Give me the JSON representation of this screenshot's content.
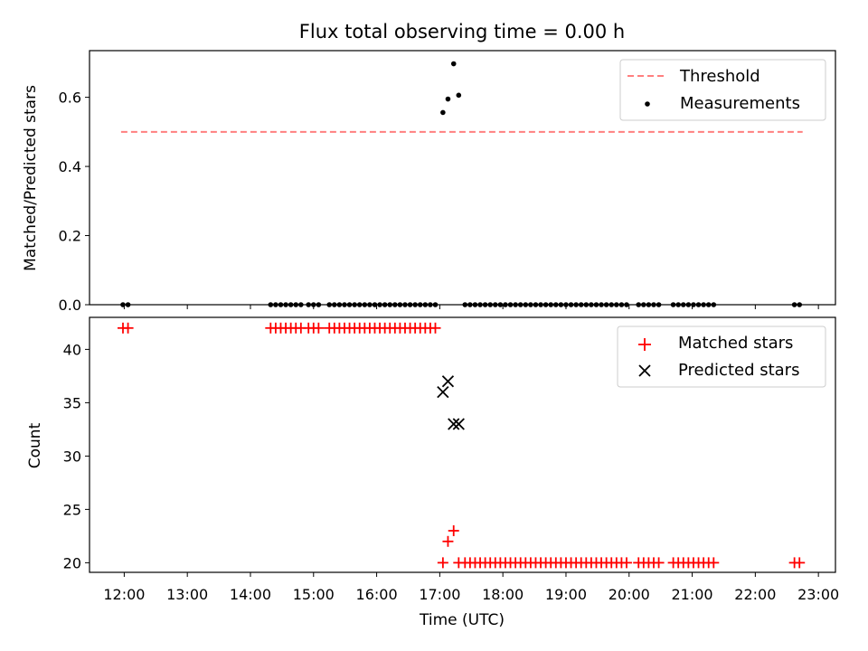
{
  "chart_data": [
    {
      "type": "scatter",
      "title": "Flux total observing time = 0.00 h",
      "xlabel": "",
      "ylabel": "Matched/Predicted stars",
      "xlim": [
        11.45,
        23.27
      ],
      "ylim": [
        0.0,
        0.735
      ],
      "yticks": [
        0.0,
        0.2,
        0.4,
        0.6
      ],
      "ytick_labels": [
        "0.0",
        "0.2",
        "0.4",
        "0.6"
      ],
      "legend_position": "upper right",
      "series": [
        {
          "name": "Threshold",
          "kind": "line",
          "style": "dashed",
          "color": "#ff7f7f",
          "x": [
            11.95,
            22.75
          ],
          "y": [
            0.5,
            0.5
          ]
        },
        {
          "name": "Measurements",
          "kind": "scatter",
          "marker": "dot",
          "color": "#000000",
          "x": [
            11.98,
            12.06,
            14.32,
            14.4,
            14.48,
            14.56,
            14.64,
            14.72,
            14.8,
            14.92,
            15.0,
            15.08,
            15.25,
            15.33,
            15.41,
            15.49,
            15.57,
            15.65,
            15.73,
            15.81,
            15.89,
            15.97,
            16.05,
            16.13,
            16.21,
            16.29,
            16.37,
            16.45,
            16.53,
            16.61,
            16.69,
            16.77,
            16.85,
            16.93,
            17.05,
            17.13,
            17.22,
            17.3,
            17.4,
            17.48,
            17.56,
            17.64,
            17.72,
            17.8,
            17.88,
            17.96,
            18.04,
            18.12,
            18.2,
            18.28,
            18.36,
            18.44,
            18.52,
            18.6,
            18.68,
            18.76,
            18.84,
            18.92,
            19.0,
            19.08,
            19.16,
            19.24,
            19.32,
            19.4,
            19.48,
            19.56,
            19.64,
            19.72,
            19.8,
            19.88,
            19.96,
            20.15,
            20.23,
            20.31,
            20.39,
            20.47,
            20.7,
            20.78,
            20.86,
            20.94,
            21.02,
            21.1,
            21.18,
            21.26,
            21.34,
            22.62,
            22.7
          ],
          "y": [
            0,
            0,
            0,
            0,
            0,
            0,
            0,
            0,
            0,
            0,
            0,
            0,
            0,
            0,
            0,
            0,
            0,
            0,
            0,
            0,
            0,
            0,
            0,
            0,
            0,
            0,
            0,
            0,
            0,
            0,
            0,
            0,
            0,
            0,
            0.556,
            0.595,
            0.697,
            0.606,
            0,
            0,
            0,
            0,
            0,
            0,
            0,
            0,
            0,
            0,
            0,
            0,
            0,
            0,
            0,
            0,
            0,
            0,
            0,
            0,
            0,
            0,
            0,
            0,
            0,
            0,
            0,
            0,
            0,
            0,
            0,
            0,
            0,
            0,
            0,
            0,
            0,
            0,
            0,
            0,
            0,
            0,
            0,
            0,
            0,
            0,
            0,
            0,
            0
          ]
        }
      ]
    },
    {
      "type": "scatter",
      "title": "",
      "xlabel": "Time (UTC)",
      "ylabel": "Count",
      "xlim": [
        11.45,
        23.27
      ],
      "ylim": [
        19.1,
        43.0
      ],
      "yticks": [
        20,
        25,
        30,
        35,
        40
      ],
      "ytick_labels": [
        "20",
        "25",
        "30",
        "35",
        "40"
      ],
      "xticks": [
        12,
        13,
        14,
        15,
        16,
        17,
        18,
        19,
        20,
        21,
        22,
        23
      ],
      "xtick_labels": [
        "12:00",
        "13:00",
        "14:00",
        "15:00",
        "16:00",
        "17:00",
        "18:00",
        "19:00",
        "20:00",
        "21:00",
        "22:00",
        "23:00"
      ],
      "legend_position": "upper right",
      "series": [
        {
          "name": "Matched stars",
          "kind": "scatter",
          "marker": "plus",
          "color": "#ff0000",
          "x": [
            11.98,
            12.06,
            14.32,
            14.4,
            14.48,
            14.56,
            14.64,
            14.72,
            14.8,
            14.92,
            15.0,
            15.08,
            15.25,
            15.33,
            15.41,
            15.49,
            15.57,
            15.65,
            15.73,
            15.81,
            15.89,
            15.97,
            16.05,
            16.13,
            16.21,
            16.29,
            16.37,
            16.45,
            16.53,
            16.61,
            16.69,
            16.77,
            16.85,
            16.93,
            17.05,
            17.13,
            17.22,
            17.3,
            17.4,
            17.48,
            17.56,
            17.64,
            17.72,
            17.8,
            17.88,
            17.96,
            18.04,
            18.12,
            18.2,
            18.28,
            18.36,
            18.44,
            18.52,
            18.6,
            18.68,
            18.76,
            18.84,
            18.92,
            19.0,
            19.08,
            19.16,
            19.24,
            19.32,
            19.4,
            19.48,
            19.56,
            19.64,
            19.72,
            19.8,
            19.88,
            19.96,
            20.15,
            20.23,
            20.31,
            20.39,
            20.47,
            20.7,
            20.78,
            20.86,
            20.94,
            21.02,
            21.1,
            21.18,
            21.26,
            21.34,
            22.62,
            22.7
          ],
          "y": [
            42,
            42,
            42,
            42,
            42,
            42,
            42,
            42,
            42,
            42,
            42,
            42,
            42,
            42,
            42,
            42,
            42,
            42,
            42,
            42,
            42,
            42,
            42,
            42,
            42,
            42,
            42,
            42,
            42,
            42,
            42,
            42,
            42,
            42,
            20,
            22,
            23,
            20,
            20,
            20,
            20,
            20,
            20,
            20,
            20,
            20,
            20,
            20,
            20,
            20,
            20,
            20,
            20,
            20,
            20,
            20,
            20,
            20,
            20,
            20,
            20,
            20,
            20,
            20,
            20,
            20,
            20,
            20,
            20,
            20,
            20,
            20,
            20,
            20,
            20,
            20,
            20,
            20,
            20,
            20,
            20,
            20,
            20,
            20,
            20,
            20,
            20
          ]
        },
        {
          "name": "Predicted stars",
          "kind": "scatter",
          "marker": "x",
          "color": "#000000",
          "x": [
            17.05,
            17.13,
            17.22,
            17.3
          ],
          "y": [
            36,
            37,
            33,
            33
          ]
        }
      ]
    }
  ]
}
